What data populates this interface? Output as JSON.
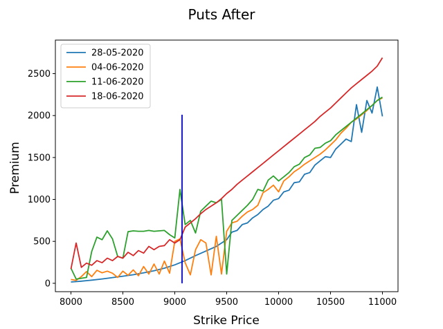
{
  "chart_data": {
    "type": "line",
    "title": "Puts After",
    "xlabel": "Strike Price",
    "ylabel": "Premium",
    "xlim": [
      7850,
      11150
    ],
    "ylim": [
      -100,
      2900
    ],
    "xticks": [
      8000,
      8500,
      9000,
      9500,
      10000,
      10500,
      11000
    ],
    "yticks": [
      0,
      500,
      1000,
      1500,
      2000,
      2500
    ],
    "grid": false,
    "legend_position": "top-left",
    "series": [
      {
        "name": "28-05-2020",
        "color": "#1f77b4",
        "points": [
          [
            8000,
            15
          ],
          [
            8100,
            25
          ],
          [
            8200,
            38
          ],
          [
            8300,
            52
          ],
          [
            8400,
            68
          ],
          [
            8500,
            85
          ],
          [
            8600,
            102
          ],
          [
            8700,
            125
          ],
          [
            8800,
            150
          ],
          [
            8900,
            180
          ],
          [
            9000,
            220
          ],
          [
            9100,
            270
          ],
          [
            9200,
            330
          ],
          [
            9300,
            385
          ],
          [
            9400,
            440
          ],
          [
            9500,
            520
          ],
          [
            9550,
            610
          ],
          [
            9600,
            630
          ],
          [
            9650,
            700
          ],
          [
            9700,
            720
          ],
          [
            9750,
            780
          ],
          [
            9800,
            820
          ],
          [
            9850,
            880
          ],
          [
            9900,
            920
          ],
          [
            9950,
            990
          ],
          [
            10000,
            1010
          ],
          [
            10050,
            1090
          ],
          [
            10100,
            1110
          ],
          [
            10150,
            1200
          ],
          [
            10200,
            1210
          ],
          [
            10250,
            1300
          ],
          [
            10300,
            1320
          ],
          [
            10350,
            1410
          ],
          [
            10400,
            1460
          ],
          [
            10450,
            1510
          ],
          [
            10500,
            1500
          ],
          [
            10550,
            1600
          ],
          [
            10600,
            1660
          ],
          [
            10650,
            1720
          ],
          [
            10700,
            1690
          ],
          [
            10750,
            2130
          ],
          [
            10800,
            1800
          ],
          [
            10850,
            2180
          ],
          [
            10900,
            2030
          ],
          [
            10950,
            2340
          ],
          [
            11000,
            1990
          ]
        ]
      },
      {
        "name": "04-06-2020",
        "color": "#ff7f0e",
        "points": [
          [
            8000,
            45
          ],
          [
            8050,
            35
          ],
          [
            8100,
            80
          ],
          [
            8150,
            140
          ],
          [
            8200,
            80
          ],
          [
            8250,
            155
          ],
          [
            8300,
            125
          ],
          [
            8350,
            145
          ],
          [
            8400,
            120
          ],
          [
            8450,
            70
          ],
          [
            8500,
            145
          ],
          [
            8550,
            95
          ],
          [
            8600,
            160
          ],
          [
            8650,
            90
          ],
          [
            8700,
            200
          ],
          [
            8750,
            110
          ],
          [
            8800,
            230
          ],
          [
            8850,
            110
          ],
          [
            8900,
            265
          ],
          [
            8950,
            120
          ],
          [
            9000,
            500
          ],
          [
            9050,
            530
          ],
          [
            9100,
            245
          ],
          [
            9150,
            100
          ],
          [
            9200,
            400
          ],
          [
            9250,
            520
          ],
          [
            9300,
            480
          ],
          [
            9350,
            100
          ],
          [
            9400,
            560
          ],
          [
            9450,
            110
          ],
          [
            9500,
            620
          ],
          [
            9550,
            720
          ],
          [
            9600,
            740
          ],
          [
            9650,
            800
          ],
          [
            9700,
            850
          ],
          [
            9750,
            880
          ],
          [
            9800,
            930
          ],
          [
            9850,
            1080
          ],
          [
            9900,
            1120
          ],
          [
            9950,
            1170
          ],
          [
            10000,
            1090
          ],
          [
            10050,
            1220
          ],
          [
            10100,
            1270
          ],
          [
            10150,
            1330
          ],
          [
            10200,
            1370
          ],
          [
            10250,
            1420
          ],
          [
            10300,
            1460
          ],
          [
            10350,
            1500
          ],
          [
            10400,
            1540
          ],
          [
            10450,
            1590
          ],
          [
            10500,
            1650
          ],
          [
            10550,
            1710
          ],
          [
            10600,
            1790
          ],
          [
            10650,
            1850
          ],
          [
            10700,
            1920
          ],
          [
            10750,
            1960
          ],
          [
            10800,
            2010
          ],
          [
            10850,
            2060
          ],
          [
            10900,
            2120
          ],
          [
            10950,
            2180
          ],
          [
            11000,
            2210
          ]
        ]
      },
      {
        "name": "11-06-2020",
        "color": "#2ca02c",
        "points": [
          [
            8000,
            180
          ],
          [
            8050,
            50
          ],
          [
            8100,
            60
          ],
          [
            8150,
            70
          ],
          [
            8200,
            380
          ],
          [
            8250,
            550
          ],
          [
            8300,
            520
          ],
          [
            8350,
            625
          ],
          [
            8400,
            530
          ],
          [
            8450,
            320
          ],
          [
            8500,
            300
          ],
          [
            8550,
            615
          ],
          [
            8600,
            625
          ],
          [
            8650,
            620
          ],
          [
            8700,
            620
          ],
          [
            8750,
            630
          ],
          [
            8800,
            620
          ],
          [
            8850,
            625
          ],
          [
            8900,
            630
          ],
          [
            8950,
            580
          ],
          [
            9000,
            540
          ],
          [
            9050,
            1120
          ],
          [
            9100,
            700
          ],
          [
            9150,
            750
          ],
          [
            9200,
            600
          ],
          [
            9250,
            860
          ],
          [
            9300,
            920
          ],
          [
            9350,
            980
          ],
          [
            9400,
            960
          ],
          [
            9450,
            1000
          ],
          [
            9500,
            110
          ],
          [
            9550,
            750
          ],
          [
            9600,
            810
          ],
          [
            9650,
            870
          ],
          [
            9700,
            930
          ],
          [
            9750,
            1000
          ],
          [
            9800,
            1120
          ],
          [
            9850,
            1100
          ],
          [
            9900,
            1230
          ],
          [
            9950,
            1280
          ],
          [
            10000,
            1220
          ],
          [
            10050,
            1270
          ],
          [
            10100,
            1320
          ],
          [
            10150,
            1390
          ],
          [
            10200,
            1420
          ],
          [
            10250,
            1500
          ],
          [
            10300,
            1530
          ],
          [
            10350,
            1610
          ],
          [
            10400,
            1620
          ],
          [
            10450,
            1670
          ],
          [
            10500,
            1700
          ],
          [
            10550,
            1770
          ],
          [
            10600,
            1820
          ],
          [
            10650,
            1870
          ],
          [
            10700,
            1920
          ],
          [
            10750,
            1970
          ],
          [
            10800,
            2020
          ],
          [
            10850,
            2070
          ],
          [
            10900,
            2120
          ],
          [
            10950,
            2180
          ],
          [
            11000,
            2220
          ]
        ]
      },
      {
        "name": "18-06-2020",
        "color": "#d62728",
        "points": [
          [
            8000,
            170
          ],
          [
            8050,
            480
          ],
          [
            8100,
            190
          ],
          [
            8150,
            240
          ],
          [
            8200,
            215
          ],
          [
            8250,
            270
          ],
          [
            8300,
            245
          ],
          [
            8350,
            300
          ],
          [
            8400,
            270
          ],
          [
            8450,
            320
          ],
          [
            8500,
            300
          ],
          [
            8550,
            370
          ],
          [
            8600,
            330
          ],
          [
            8650,
            390
          ],
          [
            8700,
            360
          ],
          [
            8750,
            440
          ],
          [
            8800,
            400
          ],
          [
            8850,
            440
          ],
          [
            8900,
            450
          ],
          [
            8950,
            520
          ],
          [
            9000,
            480
          ],
          [
            9050,
            520
          ],
          [
            9100,
            670
          ],
          [
            9150,
            720
          ],
          [
            9200,
            770
          ],
          [
            9250,
            830
          ],
          [
            9300,
            880
          ],
          [
            9350,
            920
          ],
          [
            9400,
            960
          ],
          [
            9450,
            1010
          ],
          [
            9500,
            1070
          ],
          [
            9550,
            1120
          ],
          [
            9600,
            1180
          ],
          [
            9650,
            1230
          ],
          [
            9700,
            1280
          ],
          [
            9750,
            1330
          ],
          [
            9800,
            1380
          ],
          [
            9850,
            1430
          ],
          [
            9900,
            1480
          ],
          [
            9950,
            1530
          ],
          [
            10000,
            1580
          ],
          [
            10050,
            1630
          ],
          [
            10100,
            1680
          ],
          [
            10150,
            1730
          ],
          [
            10200,
            1780
          ],
          [
            10250,
            1830
          ],
          [
            10300,
            1880
          ],
          [
            10350,
            1930
          ],
          [
            10400,
            1990
          ],
          [
            10450,
            2040
          ],
          [
            10500,
            2090
          ],
          [
            10550,
            2150
          ],
          [
            10600,
            2210
          ],
          [
            10650,
            2270
          ],
          [
            10700,
            2330
          ],
          [
            10750,
            2380
          ],
          [
            10800,
            2430
          ],
          [
            10850,
            2480
          ],
          [
            10900,
            2530
          ],
          [
            10950,
            2590
          ],
          [
            11000,
            2690
          ]
        ]
      }
    ],
    "reference_line": {
      "color": "#0000cc",
      "x": 9070,
      "y_from": 0,
      "y_to": 2010
    }
  }
}
